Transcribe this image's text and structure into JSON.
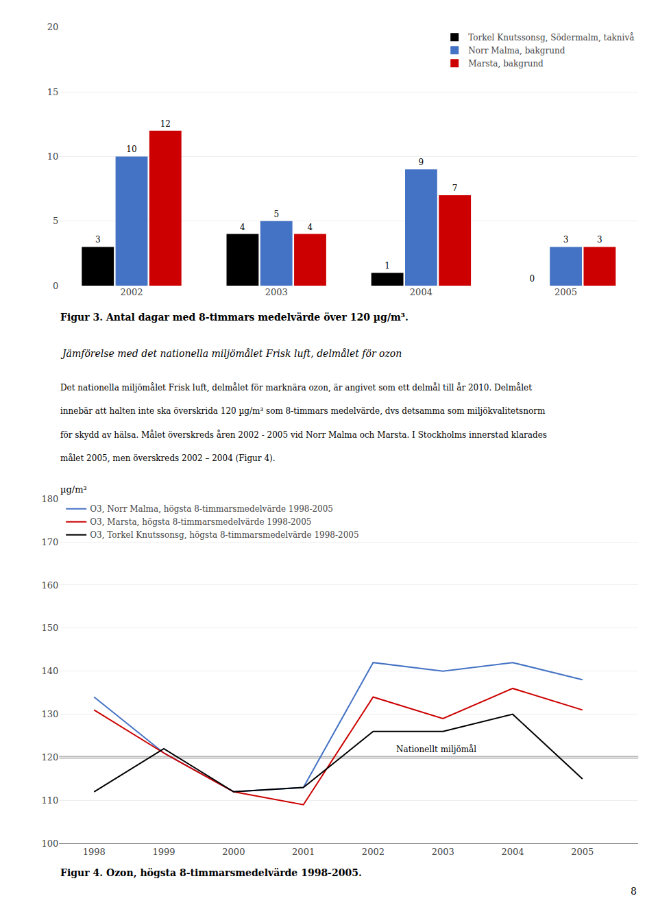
{
  "chart_data": [
    {
      "type": "bar",
      "categories": [
        "2002",
        "2003",
        "2004",
        "2005"
      ],
      "series": [
        {
          "name": "Torkel Knutssonsg, Södermalm, taknivå",
          "color": "#000000",
          "values": [
            3,
            4,
            1,
            0
          ]
        },
        {
          "name": "Norr Malma, bakgrund",
          "color": "#4472c4",
          "values": [
            10,
            5,
            9,
            3
          ]
        },
        {
          "name": "Marsta, bakgrund",
          "color": "#cc0000",
          "values": [
            12,
            4,
            7,
            3
          ]
        }
      ],
      "ylim": [
        0,
        20
      ],
      "yticks": [
        0,
        5,
        10,
        15,
        20
      ],
      "grid": true,
      "legend": "upper right",
      "data_labels": true,
      "caption": "Figur 3. Antal dagar med 8-timmars medelvärde över 120 µg/m³."
    },
    {
      "type": "line",
      "x": [
        1998,
        1999,
        2000,
        2001,
        2002,
        2003,
        2004,
        2005
      ],
      "series": [
        {
          "name": "O3, Norr Malma, högsta 8-timmarsmedelvärde 1998-2005",
          "color": "#4472c4",
          "values": [
            134,
            121,
            112,
            113,
            142,
            140,
            142,
            138
          ]
        },
        {
          "name": "O3, Marsta, högsta 8-timmarsmedelvärde 1998-2005",
          "color": "#cc0000",
          "values": [
            131,
            121,
            112,
            109,
            134,
            129,
            136,
            131
          ]
        },
        {
          "name": "O3, Torkel Knutssonsg, högsta 8-timmarsmedelvärde 1998-2005",
          "color": "#000000",
          "values": [
            112,
            122,
            112,
            113,
            126,
            126,
            130,
            115
          ]
        }
      ],
      "xlim": [
        1997.5,
        2005.8
      ],
      "xticks": [
        1998,
        1999,
        2000,
        2001,
        2002,
        2003,
        2004,
        2005
      ],
      "ylim": [
        100,
        180
      ],
      "yticks": [
        100,
        110,
        120,
        130,
        140,
        150,
        160,
        170,
        180
      ],
      "ylabel": "µg/m³",
      "grid": true,
      "legend": "upper left",
      "annotations": [
        {
          "text": "Nationellt miljömål",
          "y": 120
        }
      ],
      "caption": "Figur 4. Ozon, högsta 8-timmarsmedelvärde 1998-2005."
    }
  ],
  "heading": "Jämförelse med det nationella miljömålet Frisk luft, delmålet för ozon",
  "body": [
    "Det nationella miljömålet Frisk luft, delmålet för marknära ozon, är angivet som ett delmål till år 2010. Delmålet",
    "innebär att halten inte ska överskrida 120 µg/m³ som 8-timmars medelvärde, dvs detsamma som miljökvalitetsnorm",
    "för skydd av hälsa. Målet överskreds åren 2002 - 2005 vid Norr Malma och Marsta. I Stockholms innerstad klarades",
    "målet 2005, men överskreds 2002 – 2004 (Figur 4)."
  ],
  "page_number": "8"
}
